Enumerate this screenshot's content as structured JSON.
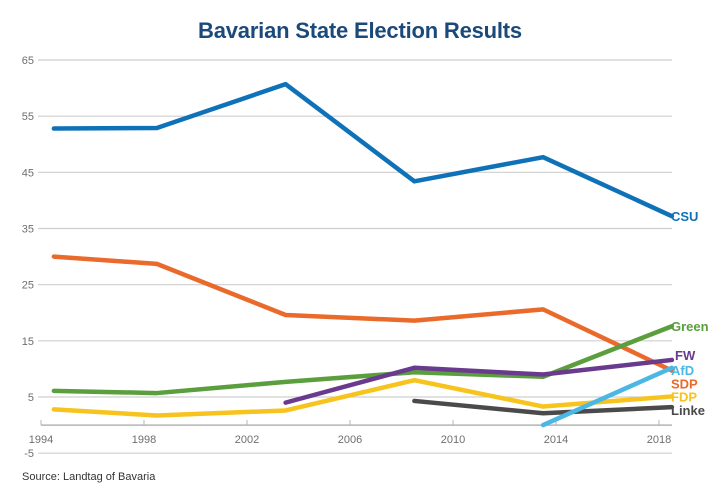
{
  "chart_data": {
    "type": "line",
    "title": "Bavarian State Election Results",
    "xlabel": "",
    "ylabel": "",
    "xlim": [
      1994,
      2018.6
    ],
    "ylim": [
      -5,
      65
    ],
    "x_ticks": [
      1994,
      1998,
      2002,
      2006,
      2010,
      2014,
      2018
    ],
    "y_ticks": [
      65,
      55,
      45,
      35,
      25,
      15,
      5,
      -5
    ],
    "grid": true,
    "legend": "inline-right",
    "series": [
      {
        "name": "CSU",
        "color": "#0f72b8",
        "x": [
          1994,
          1998,
          2003,
          2008,
          2013,
          2018
        ],
        "values": [
          52.8,
          52.9,
          60.7,
          43.4,
          47.7,
          37.2
        ]
      },
      {
        "name": "SDP",
        "color": "#ea6a2b",
        "x": [
          1994,
          1998,
          2003,
          2008,
          2013,
          2018
        ],
        "values": [
          30.0,
          28.7,
          19.6,
          18.6,
          20.6,
          9.7
        ]
      },
      {
        "name": "Green",
        "color": "#5a9e3e",
        "x": [
          1994,
          1998,
          2003,
          2008,
          2013,
          2018
        ],
        "values": [
          6.1,
          5.7,
          7.7,
          9.4,
          8.6,
          17.6
        ]
      },
      {
        "name": "FDP",
        "color": "#f7c31d",
        "x": [
          1994,
          1998,
          2003,
          2008,
          2013,
          2018
        ],
        "values": [
          2.8,
          1.7,
          2.6,
          8.0,
          3.3,
          5.1
        ]
      },
      {
        "name": "FW",
        "color": "#6a3a8e",
        "x": [
          2003,
          2008,
          2013,
          2018
        ],
        "values": [
          4.0,
          10.2,
          9.0,
          11.6
        ]
      },
      {
        "name": "Linke",
        "color": "#4a4a4a",
        "x": [
          2008,
          2013,
          2018
        ],
        "values": [
          4.3,
          2.1,
          3.2
        ]
      },
      {
        "name": "AfD",
        "color": "#4bb7e4",
        "x": [
          2013,
          2018
        ],
        "values": [
          0.0,
          10.2
        ]
      }
    ],
    "source": "Source: Landtag of Bavaria"
  }
}
